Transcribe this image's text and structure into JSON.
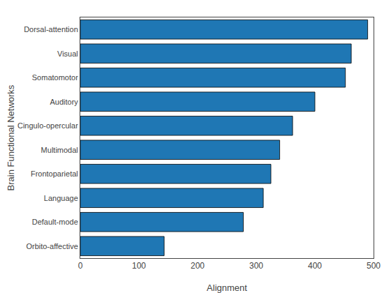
{
  "chart_data": {
    "type": "bar",
    "orientation": "horizontal",
    "categories": [
      "Orbito-affective",
      "Default-mode",
      "Language",
      "Frontoparietal",
      "Multimodal",
      "Cingulo-opercular",
      "Auditory",
      "Somatomotor",
      "Visual",
      "Dorsal-attention"
    ],
    "values": [
      143,
      278,
      312,
      325,
      340,
      362,
      400,
      452,
      462,
      490
    ],
    "color": "#1f77b4",
    "xlabel": "Alignment",
    "ylabel": "Brain Functional Networks",
    "xlim": [
      0,
      500
    ],
    "xticks": [
      0,
      100,
      200,
      300,
      400,
      500
    ],
    "grid": false
  }
}
